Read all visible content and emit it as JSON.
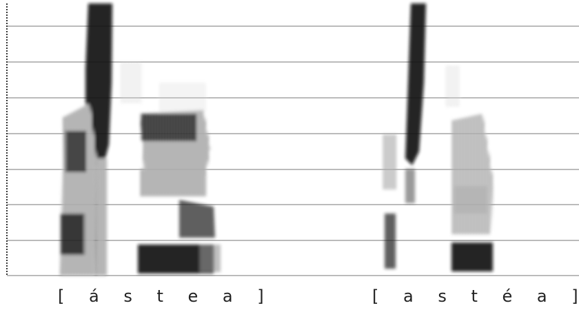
{
  "transcriptions": [
    "[ á s t e a ]",
    "[ a s t é a ]"
  ]
}
